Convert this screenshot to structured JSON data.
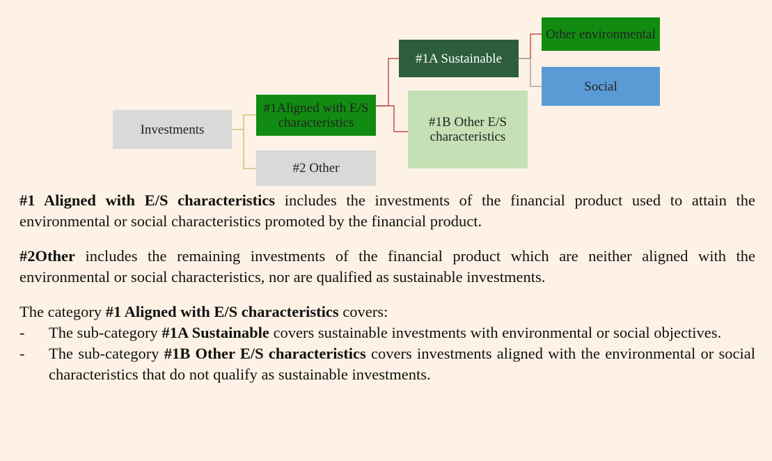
{
  "nodes": [
    {
      "label": "Investments"
    },
    {
      "label": "#1Aligned with E/S characteristics"
    },
    {
      "label": "#2 Other"
    },
    {
      "label": "#1A Sustainable"
    },
    {
      "label": "#1B Other E/S characteristics"
    },
    {
      "label": "Other environmental"
    },
    {
      "label": "Social"
    }
  ],
  "paragraphs": [
    {
      "bold": "#1 Aligned with E/S characteristics",
      "text": " includes the investments of the financial product used to attain the environmental or social characteristics promoted by the financial product."
    },
    {
      "bold": "#2Other",
      "text": " includes the remaining investments of the financial product which are neither aligned with the environmental or social characteristics, nor are qualified as sustainable investments."
    }
  ],
  "category": {
    "before": "The category ",
    "bold": "#1 Aligned with E/S characteristics",
    "after": " covers:"
  },
  "list": [
    {
      "marker": "-",
      "before": "The sub-category ",
      "bold": "#1A Sustainable",
      "after": " covers sustainable investments with environmental or social objectives."
    },
    {
      "marker": "-",
      "before": "The sub-category ",
      "bold": "#1B Other E/S characteristics",
      "after": " covers investments aligned with the environmental or social characteristics that do not qualify as sustainable investments."
    }
  ]
}
